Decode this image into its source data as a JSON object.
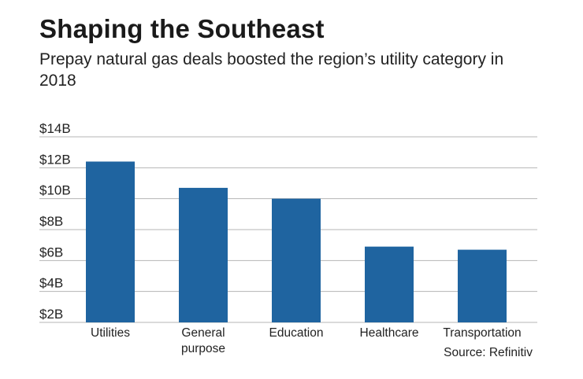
{
  "chart_data": {
    "type": "bar",
    "title": "Shaping the Southeast",
    "subtitle": "Prepay natural gas deals boosted the region’s utility category in 2018",
    "categories": [
      "Utilities",
      "General purpose",
      "Education",
      "Healthcare",
      "Transportation"
    ],
    "values": [
      12.4,
      10.7,
      10.0,
      6.9,
      6.7
    ],
    "unit": "$B",
    "ylim": [
      2,
      14
    ],
    "yticks": [
      2,
      4,
      6,
      8,
      10,
      12,
      14
    ],
    "ytick_labels": [
      "$2B",
      "$4B",
      "$6B",
      "$8B",
      "$10B",
      "$12B",
      "$14B"
    ],
    "grid": true,
    "colors": {
      "bar": "#1f64a0",
      "grid": "#b5b5b5",
      "text": "#1a1a1a"
    },
    "source": "Source: Refinitiv"
  }
}
